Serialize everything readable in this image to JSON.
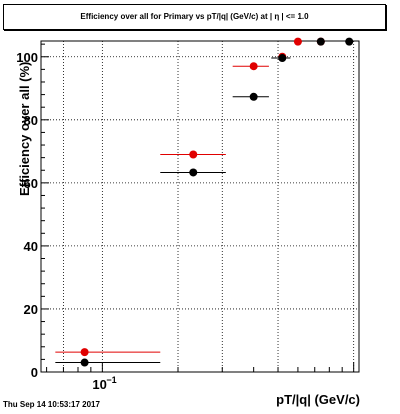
{
  "chart_data": {
    "type": "scatter",
    "title": "Efficiency over all for Primary vs pT/|q| (GeV/c) at | η | <= 1.0",
    "xlabel": "pT/|q| (GeV/c)",
    "ylabel": "Efficiency over all (%)",
    "x_scale": "log",
    "xlim": [
      0.057,
      1.05
    ],
    "ylim": [
      0,
      105
    ],
    "grid": true,
    "y_ticks": [
      0,
      20,
      40,
      60,
      80,
      100
    ],
    "x_tick_label": "10^-1",
    "series": [
      {
        "color": "#e00000",
        "points": [
          {
            "x": 0.085,
            "y": 6.3,
            "xlo": 0.065,
            "xhi": 0.17
          },
          {
            "x": 0.23,
            "y": 69.0,
            "xlo": 0.17,
            "xhi": 0.31
          },
          {
            "x": 0.4,
            "y": 97.0,
            "xlo": 0.33,
            "xhi": 0.46
          },
          {
            "x": 0.52,
            "y": 100.0,
            "xlo": 0.52,
            "xhi": 0.52
          },
          {
            "x": 0.74,
            "y": 104.8,
            "xlo": 0.74,
            "xhi": 0.74
          },
          {
            "x": 0.6,
            "y": 104.8,
            "xlo": 0.6,
            "xhi": 0.6
          }
        ]
      },
      {
        "color": "#000000",
        "points": [
          {
            "x": 0.085,
            "y": 3.0,
            "xlo": 0.065,
            "xhi": 0.17
          },
          {
            "x": 0.23,
            "y": 63.3,
            "xlo": 0.17,
            "xhi": 0.31
          },
          {
            "x": 0.4,
            "y": 87.3,
            "xlo": 0.33,
            "xhi": 0.46
          },
          {
            "x": 0.52,
            "y": 99.6,
            "xlo": 0.47,
            "xhi": 0.56
          },
          {
            "x": 0.74,
            "y": 104.8,
            "xlo": 0.74,
            "xhi": 0.74
          },
          {
            "x": 0.96,
            "y": 104.8,
            "xlo": 0.96,
            "xhi": 0.96
          }
        ]
      }
    ]
  },
  "footer": "Thu Sep 14 10:53:17 2017"
}
